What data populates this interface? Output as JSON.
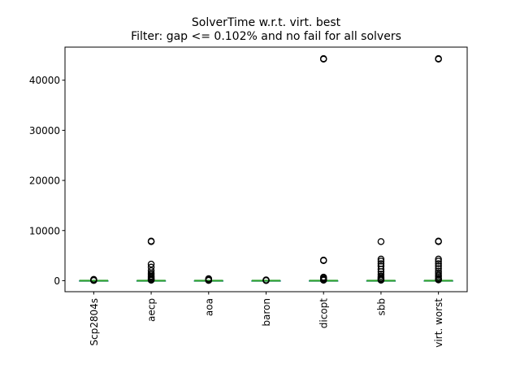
{
  "chart_data": {
    "type": "box",
    "title": "SolverTime w.r.t. virt. best",
    "subtitle": "Filter: gap <= 0.102% and no fail for all solvers",
    "xlabel": "",
    "ylabel": "",
    "ylim": [
      -2200,
      46600
    ],
    "yticks": [
      0,
      10000,
      20000,
      30000,
      40000
    ],
    "ytick_labels": [
      "0",
      "10000",
      "20000",
      "30000",
      "40000"
    ],
    "categories": [
      "Scp2804s",
      "aecp",
      "aoa",
      "baron",
      "dicopt",
      "sbb",
      "virt. worst"
    ],
    "median_color": "#2ca02c",
    "box_color": "#1f77b4",
    "flier_color": "#000000",
    "grid": false,
    "legend": "none",
    "boxes": [
      {
        "median": 1,
        "q1": 0,
        "q3": 3,
        "whislo": 0,
        "whishi": 8,
        "fliers": [
          40,
          80,
          120,
          160,
          200,
          260
        ]
      },
      {
        "median": 1,
        "q1": 0,
        "q3": 5,
        "whislo": 0,
        "whishi": 12,
        "fliers": [
          100,
          200,
          300,
          500,
          700,
          900,
          1200,
          1500,
          2000,
          2700,
          3300,
          7800,
          7900
        ]
      },
      {
        "median": 1,
        "q1": 0,
        "q3": 3,
        "whislo": 0,
        "whishi": 8,
        "fliers": [
          50,
          100,
          150,
          200,
          300,
          400
        ]
      },
      {
        "median": 1,
        "q1": 0,
        "q3": 2,
        "whislo": 0,
        "whishi": 5,
        "fliers": [
          30,
          60,
          100,
          150
        ]
      },
      {
        "median": 1,
        "q1": 0,
        "q3": 5,
        "whislo": 0,
        "whishi": 12,
        "fliers": [
          100,
          200,
          350,
          500,
          700,
          4000,
          4100,
          44200,
          44300
        ]
      },
      {
        "median": 1,
        "q1": 0,
        "q3": 5,
        "whislo": 0,
        "whishi": 12,
        "fliers": [
          100,
          200,
          400,
          600,
          900,
          1300,
          1800,
          2300,
          2900,
          3400,
          3900,
          4300,
          7800
        ]
      },
      {
        "median": 2,
        "q1": 0,
        "q3": 10,
        "whislo": 0,
        "whishi": 25,
        "fliers": [
          150,
          300,
          500,
          800,
          1100,
          1500,
          1900,
          2400,
          2900,
          3400,
          3900,
          4300,
          7800,
          7900,
          44200,
          44300
        ]
      }
    ]
  }
}
